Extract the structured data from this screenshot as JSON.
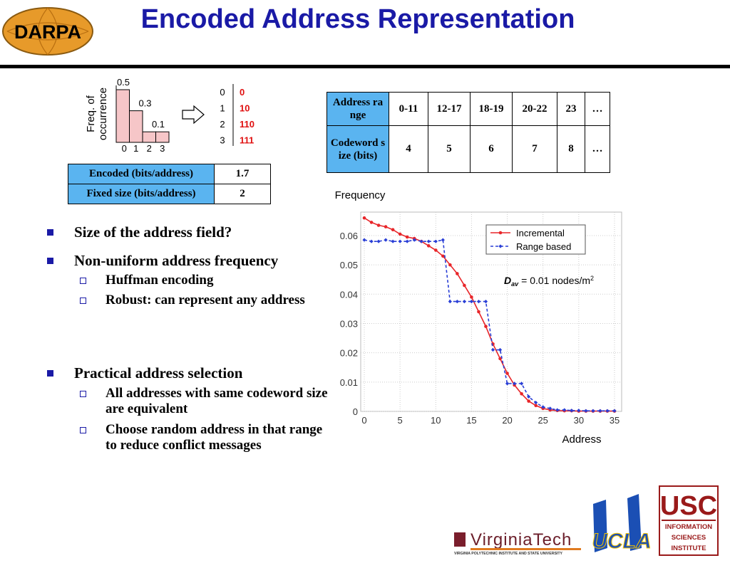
{
  "title": "Encoded Address Representation",
  "logos": {
    "darpa": "DARPA",
    "virginia_tech": "VirginiaTech",
    "virginia_tech_sub": "VIRGINIA POLYTECHNIC INSTITUTE AND STATE UNIVERSITY",
    "ucla": "UCLA",
    "usc": "USC",
    "isi": [
      "INFORMATION",
      "SCIENCES",
      "INSTITUTE"
    ]
  },
  "codes": {
    "symbols": [
      "0",
      "1",
      "2",
      "3"
    ],
    "codewords": [
      "0",
      "10",
      "110",
      "111"
    ]
  },
  "bits_table": {
    "rows": [
      [
        "Encoded (bits/address)",
        "1.7"
      ],
      [
        "Fixed size (bits/address)",
        "2"
      ]
    ]
  },
  "range_table": {
    "rows": [
      [
        "Address range",
        "0-11",
        "12-17",
        "18-19",
        "20-22",
        "23",
        "…"
      ],
      [
        "Codeword size (bits)",
        "4",
        "5",
        "6",
        "7",
        "8",
        "…"
      ]
    ]
  },
  "bullets": [
    {
      "text": "Size of the address field?"
    },
    {
      "text": "Non-uniform address frequency",
      "sub": [
        "Huffman encoding",
        "Robust: can represent any address"
      ]
    },
    {
      "text": "Practical address selection",
      "sub": [
        "All addresses with same codeword size are equivalent",
        "Choose random address in that range to reduce conflict messages"
      ]
    }
  ],
  "chart_data": [
    {
      "type": "bar",
      "ylabel": [
        "Freq. of",
        "occurrence"
      ],
      "categories": [
        "0",
        "1",
        "2",
        "3"
      ],
      "values": [
        0.5,
        0.3,
        0.1,
        0.1
      ],
      "value_labels": [
        "0.5",
        "0.3",
        "0.1",
        null
      ],
      "color": "#f6c6c8",
      "ylim": [
        0,
        0.5
      ]
    },
    {
      "type": "line",
      "xlabel": "Address",
      "ylabel": "Frequency",
      "x": [
        0,
        1,
        2,
        3,
        4,
        5,
        6,
        7,
        8,
        9,
        10,
        11,
        12,
        13,
        14,
        15,
        16,
        17,
        18,
        19,
        20,
        21,
        22,
        23,
        24,
        25,
        26,
        27,
        28,
        29,
        30,
        31,
        32,
        33,
        34,
        35
      ],
      "series": [
        {
          "name": "Incremental",
          "color": "#e8262a",
          "dash": false,
          "values": [
            0.066,
            0.0645,
            0.0635,
            0.063,
            0.062,
            0.0605,
            0.0595,
            0.059,
            0.058,
            0.0565,
            0.055,
            0.053,
            0.05,
            0.047,
            0.043,
            0.039,
            0.034,
            0.029,
            0.023,
            0.018,
            0.013,
            0.009,
            0.006,
            0.0035,
            0.002,
            0.001,
            0.0005,
            0.0003,
            0.0002,
            0.0002,
            0.0001,
            0.0001,
            0.0001,
            0.0001,
            0.0001,
            0.0001
          ]
        },
        {
          "name": "Range based",
          "color": "#2a3fd6",
          "dash": true,
          "values": [
            0.0585,
            0.058,
            0.058,
            0.0585,
            0.058,
            0.058,
            0.058,
            0.0585,
            0.058,
            0.058,
            0.058,
            0.0585,
            0.0375,
            0.0375,
            0.0375,
            0.0375,
            0.0375,
            0.0375,
            0.021,
            0.021,
            0.0095,
            0.0095,
            0.0095,
            0.005,
            0.003,
            0.0015,
            0.001,
            0.0005,
            0.0005,
            0.0003,
            0.0003,
            0.0002,
            0.0002,
            0.0002,
            0.0002,
            0.0002
          ]
        }
      ],
      "xlim": [
        -0.5,
        36
      ],
      "ylim": [
        0,
        0.068
      ],
      "xticks": [
        0,
        5,
        10,
        15,
        20,
        25,
        30,
        35
      ],
      "yticks": [
        0,
        0.01,
        0.02,
        0.03,
        0.04,
        0.05,
        0.06
      ],
      "grid": true,
      "legend": "upper right",
      "annotation": {
        "symbol": "D",
        "subscript": "av",
        "text": "= 0.01 nodes/m",
        "superscript": "2"
      }
    }
  ]
}
